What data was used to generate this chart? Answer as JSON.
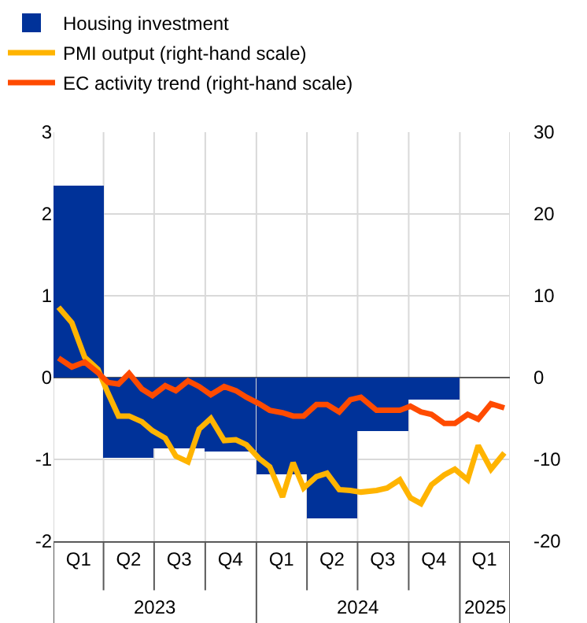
{
  "chart_data": {
    "type": "bar",
    "x": [
      "2023-02-15",
      "2023-05-16",
      "2023-08-15",
      "2023-11-15",
      "2024-02-15",
      "2024-05-16",
      "2024-08-15",
      "2024-11-15"
    ],
    "series": [
      {
        "name": "Housing investment",
        "color": "#003299",
        "values": [
          2.35,
          -0.98,
          -0.87,
          -0.9,
          -1.18,
          -1.72,
          -0.65,
          -0.27
        ]
      },
      {
        "name": "PMI output (right-hand scale)",
        "type": "line",
        "axis": "y2",
        "color": "#ffb400",
        "x": [
          "2023-01-10",
          "2023-02-03",
          "2023-02-26",
          "2023-03-22",
          "2023-04-09",
          "2023-04-28",
          "2023-05-17",
          "2023-06-09",
          "2023-06-28",
          "2023-07-21",
          "2023-08-09",
          "2023-08-31",
          "2023-09-20",
          "2023-10-11",
          "2023-11-04",
          "2023-11-25",
          "2023-12-14",
          "2024-01-06",
          "2024-01-25",
          "2024-02-17",
          "2024-03-07",
          "2024-03-26",
          "2024-04-18",
          "2024-05-07",
          "2024-05-29",
          "2024-06-18",
          "2024-07-07",
          "2024-08-04",
          "2024-08-23",
          "2024-09-15",
          "2024-10-04",
          "2024-10-23",
          "2024-11-11",
          "2024-12-04",
          "2024-12-23",
          "2025-01-15",
          "2025-02-03",
          "2025-02-26",
          "2025-03-22"
        ],
        "values": [
          8.6,
          6.7,
          2.5,
          1.0,
          -1.9,
          -4.7,
          -4.7,
          -5.4,
          -6.5,
          -7.4,
          -9.6,
          -10.3,
          -6.3,
          -5.0,
          -7.7,
          -7.6,
          -8.2,
          -9.9,
          -10.9,
          -14.6,
          -10.4,
          -13.5,
          -12.1,
          -11.7,
          -13.7,
          -13.8,
          -14.0,
          -13.8,
          -13.5,
          -12.5,
          -14.7,
          -15.4,
          -13.1,
          -11.9,
          -11.2,
          -12.5,
          -8.3,
          -11.2,
          -9.2
        ]
      },
      {
        "name": "EC activity trend (right-hand scale)",
        "type": "line",
        "axis": "y2",
        "color": "#ff4b00",
        "x": [
          "2023-01-10",
          "2023-02-03",
          "2023-02-26",
          "2023-03-22",
          "2023-04-09",
          "2023-04-28",
          "2023-05-17",
          "2023-06-09",
          "2023-06-28",
          "2023-07-21",
          "2023-08-09",
          "2023-08-31",
          "2023-09-20",
          "2023-10-11",
          "2023-11-04",
          "2023-11-25",
          "2023-12-14",
          "2024-01-06",
          "2024-01-25",
          "2024-02-17",
          "2024-03-07",
          "2024-03-26",
          "2024-04-18",
          "2024-05-07",
          "2024-05-29",
          "2024-06-18",
          "2024-07-07",
          "2024-08-04",
          "2024-08-23",
          "2024-09-15",
          "2024-10-04",
          "2024-10-23",
          "2024-11-11",
          "2024-12-04",
          "2024-12-23",
          "2025-01-15",
          "2025-02-03",
          "2025-02-26",
          "2025-03-22"
        ],
        "values": [
          2.4,
          1.3,
          1.9,
          0.6,
          -0.6,
          -0.8,
          0.5,
          -1.4,
          -2.2,
          -1.0,
          -1.6,
          -0.4,
          -1.1,
          -2.1,
          -1.1,
          -1.6,
          -2.4,
          -3.2,
          -4.0,
          -4.3,
          -4.7,
          -4.7,
          -3.3,
          -3.3,
          -4.2,
          -2.7,
          -2.4,
          -4.0,
          -4.0,
          -4.0,
          -3.5,
          -4.2,
          -4.5,
          -5.6,
          -5.6,
          -4.5,
          -5.1,
          -3.2,
          -3.7
        ]
      }
    ],
    "xlim": [
      "2023-01-01",
      "2025-04-01"
    ],
    "xticks": [
      {
        "value": "2023-01-01",
        "label": null
      },
      {
        "value": "2023-02-15",
        "label": "Q1"
      },
      {
        "value": "2023-04-01",
        "label": null
      },
      {
        "value": "2023-05-16",
        "label": "Q2"
      },
      {
        "value": "2023-07-01",
        "label": null
      },
      {
        "value": "2023-08-15",
        "label": "Q3"
      },
      {
        "value": "2023-10-01",
        "label": null
      },
      {
        "value": "2023-11-15",
        "label": "Q4"
      },
      {
        "value": "2024-01-01",
        "label": null
      },
      {
        "value": "2024-02-15",
        "label": "Q1"
      },
      {
        "value": "2024-04-01",
        "label": null
      },
      {
        "value": "2024-05-16",
        "label": "Q2"
      },
      {
        "value": "2024-07-01",
        "label": null
      },
      {
        "value": "2024-08-15",
        "label": "Q3"
      },
      {
        "value": "2024-10-01",
        "label": null
      },
      {
        "value": "2024-11-15",
        "label": "Q4"
      },
      {
        "value": "2025-01-01",
        "label": null
      },
      {
        "value": "2025-02-14",
        "label": "Q1"
      },
      {
        "value": "2025-04-01",
        "label": null
      }
    ],
    "ylim": [
      -2,
      3
    ],
    "yticks": [
      -2,
      -1,
      0,
      1,
      2,
      3
    ],
    "y2lim": [
      -20,
      30
    ],
    "y2ticks": [
      -20,
      -10,
      0,
      10,
      20,
      30
    ],
    "annotations": [
      "2023",
      "2024",
      "2025"
    ],
    "grid": true,
    "legend": "top left"
  }
}
